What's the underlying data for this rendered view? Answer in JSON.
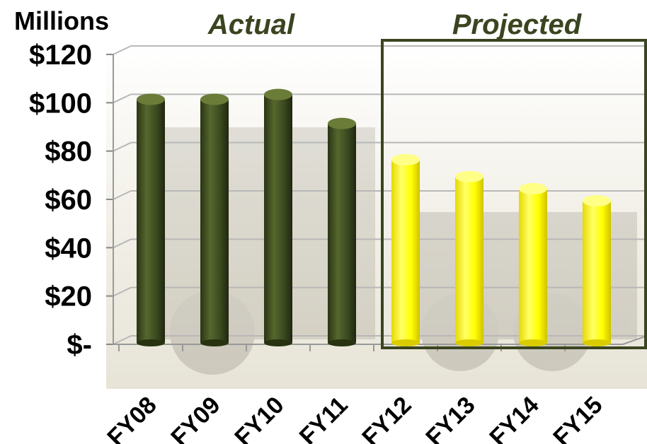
{
  "chart_data": {
    "type": "bar",
    "unit_label": "Millions",
    "group_labels": [
      "Actual",
      "Projected"
    ],
    "categories": [
      "FY08",
      "FY09",
      "FY10",
      "FY11",
      "FY12",
      "FY13",
      "FY14",
      "FY15"
    ],
    "values": [
      102,
      102,
      104,
      92,
      77,
      70,
      65,
      60
    ],
    "groups": [
      "Actual",
      "Actual",
      "Actual",
      "Actual",
      "Projected",
      "Projected",
      "Projected",
      "Projected"
    ],
    "yticks": [
      "$-",
      "$20",
      "$40",
      "$60",
      "$80",
      "$100",
      "$120"
    ],
    "ylim": [
      0,
      120
    ],
    "grid": true,
    "colors": {
      "actual": "#3c4a1f",
      "projected": "#ffff00",
      "grid": "#b8b8b8",
      "group_label": "#3a4520",
      "projected_box": "#3a4520"
    }
  }
}
